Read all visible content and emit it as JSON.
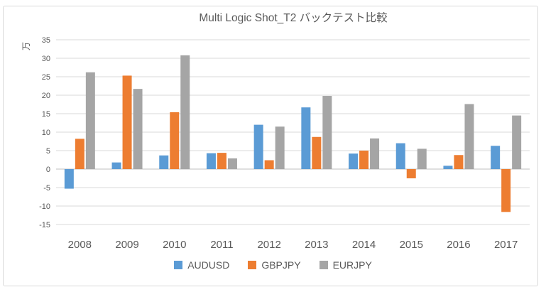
{
  "chart_data": {
    "type": "bar",
    "title": "Multi Logic Shot_T2 バックテスト比較",
    "ylabel": "万",
    "xlabel": "",
    "categories": [
      "2008",
      "2009",
      "2010",
      "2011",
      "2012",
      "2013",
      "2014",
      "2015",
      "2016",
      "2017"
    ],
    "series": [
      {
        "name": "AUDUSD",
        "color": "#5B9BD5",
        "values": [
          -5.3,
          1.8,
          3.7,
          4.3,
          12.0,
          16.7,
          4.2,
          7.0,
          0.9,
          6.3
        ]
      },
      {
        "name": "GBPJPY",
        "color": "#ED7D31",
        "values": [
          8.2,
          25.3,
          15.4,
          4.4,
          2.4,
          8.7,
          5.0,
          -2.5,
          3.8,
          -11.6
        ]
      },
      {
        "name": "EURJPY",
        "color": "#A5A5A5",
        "values": [
          26.2,
          21.7,
          30.8,
          2.9,
          11.5,
          19.8,
          8.3,
          5.5,
          17.6,
          14.5
        ]
      }
    ],
    "ylim": [
      -15,
      35
    ],
    "ytick_step": 5,
    "yticks": [
      35,
      30,
      25,
      20,
      15,
      10,
      5,
      0,
      -5,
      -10,
      -15
    ],
    "grid": true,
    "legend_position": "bottom",
    "colors": {
      "text": "#595959",
      "gridline": "#D9D9D9",
      "axis_line": "#BFBFBF",
      "frame_border": "#D9D9D9",
      "background": "#FFFFFF"
    }
  }
}
